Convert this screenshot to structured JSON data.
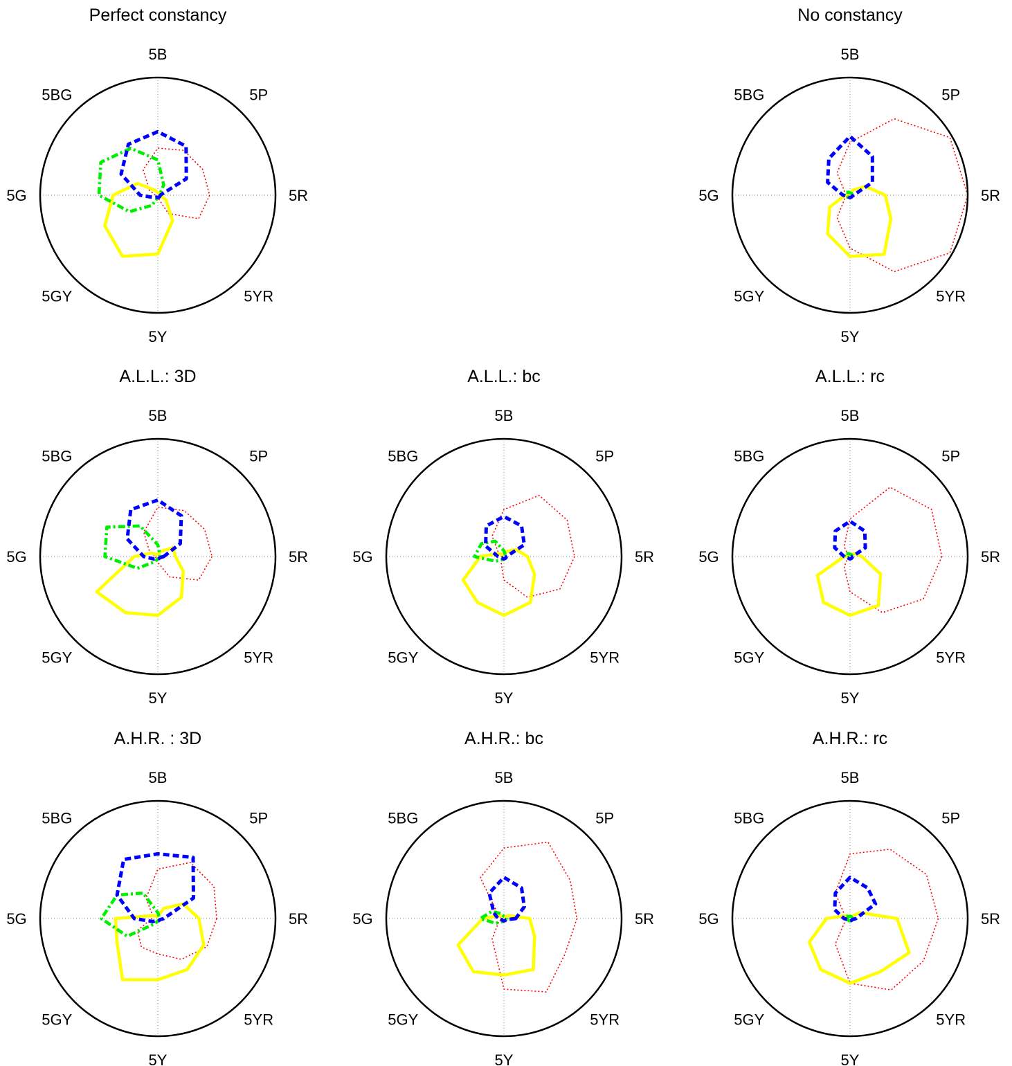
{
  "figure": {
    "directions": [
      "5R",
      "5YR",
      "5Y",
      "5GY",
      "5G",
      "5BG",
      "5B",
      "5P"
    ],
    "colors": {
      "outline": "#000000",
      "grid": "#888888",
      "red": "#ff0000",
      "yellow": "#ffff00",
      "green": "#00ee00",
      "blue": "#0000ff"
    }
  },
  "chart_data": [
    {
      "type": "polar",
      "title": "Perfect constancy",
      "rmax": 1,
      "grid": true,
      "angles_deg": [
        0,
        30,
        60,
        90,
        120,
        150,
        180,
        210,
        240,
        270,
        300,
        330
      ],
      "series": [
        {
          "color": "red",
          "style": "dotted",
          "values": [
            0.44,
            0.4,
            0.18,
            0.02,
            0.02,
            0.02,
            0.02,
            0.08,
            0.25,
            0.4,
            0.44,
            0.44
          ]
        },
        {
          "color": "yellow",
          "style": "solid",
          "values": [
            0.02,
            0.08,
            0.25,
            0.5,
            0.6,
            0.52,
            0.38,
            0.2,
            0.05,
            0.02,
            0.02,
            0.02
          ]
        },
        {
          "color": "green",
          "style": "dashdot",
          "values": [
            0.02,
            0.02,
            0.02,
            0.02,
            0.1,
            0.28,
            0.5,
            0.56,
            0.46,
            0.3,
            0.1,
            0.02
          ]
        },
        {
          "color": "blue",
          "style": "dashed",
          "values": [
            0.02,
            0.02,
            0.02,
            0.02,
            0.02,
            0.04,
            0.15,
            0.36,
            0.5,
            0.54,
            0.48,
            0.28
          ]
        }
      ]
    },
    {
      "type": "polar",
      "title": "No constancy",
      "rmax": 1,
      "grid": true,
      "angles_deg": [
        0,
        30,
        60,
        90,
        120,
        150,
        180,
        210,
        240,
        270,
        300,
        330
      ],
      "series": [
        {
          "color": "red",
          "style": "dotted",
          "values": [
            1.0,
            0.98,
            0.75,
            0.45,
            0.22,
            0.05,
            0.02,
            0.05,
            0.22,
            0.45,
            0.75,
            0.98
          ]
        },
        {
          "color": "yellow",
          "style": "solid",
          "values": [
            0.3,
            0.4,
            0.58,
            0.52,
            0.38,
            0.2,
            0.04,
            0.02,
            0.02,
            0.02,
            0.05,
            0.15
          ]
        },
        {
          "color": "green",
          "style": "dashdot",
          "values": [
            0.02,
            0.02,
            0.02,
            0.02,
            0.02,
            0.03,
            0.05,
            0.05,
            0.03,
            0.02,
            0.02,
            0.02
          ]
        },
        {
          "color": "blue",
          "style": "dashed",
          "values": [
            0.03,
            0.02,
            0.02,
            0.02,
            0.02,
            0.02,
            0.06,
            0.22,
            0.36,
            0.5,
            0.38,
            0.22
          ]
        }
      ]
    },
    {
      "type": "polar",
      "title": "A.L.L.: 3D",
      "rmax": 1,
      "grid": true,
      "angles_deg": [
        0,
        30,
        60,
        90,
        120,
        150,
        180,
        210,
        240,
        270,
        300,
        330
      ],
      "series": [
        {
          "color": "red",
          "style": "dotted",
          "values": [
            0.46,
            0.4,
            0.2,
            0.05,
            0.02,
            0.02,
            0.02,
            0.08,
            0.24,
            0.42,
            0.45,
            0.46
          ]
        },
        {
          "color": "yellow",
          "style": "solid",
          "values": [
            0.15,
            0.25,
            0.4,
            0.5,
            0.55,
            0.6,
            0.2,
            0.06,
            0.02,
            0.02,
            0.05,
            0.15
          ]
        },
        {
          "color": "green",
          "style": "dashdot",
          "values": [
            0.02,
            0.02,
            0.02,
            0.02,
            0.05,
            0.2,
            0.45,
            0.5,
            0.3,
            0.1,
            0.03,
            0.02
          ]
        },
        {
          "color": "blue",
          "style": "dashed",
          "values": [
            0.05,
            0.02,
            0.02,
            0.02,
            0.02,
            0.04,
            0.12,
            0.3,
            0.46,
            0.48,
            0.4,
            0.22
          ]
        }
      ]
    },
    {
      "type": "polar",
      "title": "A.L.L.: bc",
      "rmax": 1,
      "grid": true,
      "angles_deg": [
        0,
        30,
        60,
        90,
        120,
        150,
        180,
        210,
        240,
        270,
        300,
        330
      ],
      "series": [
        {
          "color": "red",
          "style": "dotted",
          "values": [
            0.6,
            0.55,
            0.4,
            0.2,
            0.05,
            0.02,
            0.02,
            0.05,
            0.2,
            0.4,
            0.6,
            0.62
          ]
        },
        {
          "color": "yellow",
          "style": "solid",
          "values": [
            0.2,
            0.3,
            0.45,
            0.5,
            0.45,
            0.4,
            0.2,
            0.05,
            0.02,
            0.02,
            0.05,
            0.12
          ]
        },
        {
          "color": "green",
          "style": "dashdot",
          "values": [
            0.02,
            0.02,
            0.02,
            0.02,
            0.03,
            0.08,
            0.25,
            0.22,
            0.15,
            0.05,
            0.02,
            0.02
          ]
        },
        {
          "color": "blue",
          "style": "dashed",
          "values": [
            0.02,
            0.02,
            0.02,
            0.02,
            0.02,
            0.02,
            0.05,
            0.18,
            0.3,
            0.34,
            0.3,
            0.2
          ]
        }
      ]
    },
    {
      "type": "polar",
      "title": "A.L.L.: rc",
      "rmax": 1,
      "grid": true,
      "angles_deg": [
        0,
        30,
        60,
        90,
        120,
        150,
        180,
        210,
        240,
        270,
        300,
        330
      ],
      "series": [
        {
          "color": "red",
          "style": "dotted",
          "values": [
            0.78,
            0.72,
            0.55,
            0.3,
            0.1,
            0.02,
            0.02,
            0.02,
            0.1,
            0.32,
            0.68,
            0.8
          ]
        },
        {
          "color": "yellow",
          "style": "solid",
          "values": [
            0.1,
            0.3,
            0.48,
            0.5,
            0.45,
            0.32,
            0.05,
            0.02,
            0.02,
            0.02,
            0.02,
            0.05
          ]
        },
        {
          "color": "green",
          "style": "dashdot",
          "values": [
            0.02,
            0.02,
            0.02,
            0.02,
            0.02,
            0.02,
            0.05,
            0.05,
            0.03,
            0.02,
            0.02,
            0.02
          ]
        },
        {
          "color": "blue",
          "style": "dashed",
          "values": [
            0.02,
            0.02,
            0.02,
            0.02,
            0.02,
            0.02,
            0.05,
            0.15,
            0.25,
            0.3,
            0.25,
            0.15
          ]
        }
      ]
    },
    {
      "type": "polar",
      "title": "A.H.R. : 3D",
      "rmax": 1,
      "grid": true,
      "angles_deg": [
        0,
        30,
        60,
        90,
        120,
        150,
        180,
        210,
        240,
        270,
        300,
        330
      ],
      "series": [
        {
          "color": "red",
          "style": "dotted",
          "values": [
            0.5,
            0.48,
            0.4,
            0.3,
            0.28,
            0.2,
            0.05,
            0.05,
            0.2,
            0.42,
            0.55,
            0.55
          ]
        },
        {
          "color": "yellow",
          "style": "solid",
          "values": [
            0.35,
            0.45,
            0.5,
            0.52,
            0.6,
            0.4,
            0.36,
            0.05,
            0.02,
            0.02,
            0.1,
            0.25
          ]
        },
        {
          "color": "green",
          "style": "dashdot",
          "values": [
            0.02,
            0.02,
            0.02,
            0.02,
            0.05,
            0.3,
            0.48,
            0.4,
            0.25,
            0.05,
            0.02,
            0.02
          ]
        },
        {
          "color": "blue",
          "style": "dashed",
          "values": [
            0.05,
            0.02,
            0.02,
            0.02,
            0.02,
            0.05,
            0.2,
            0.4,
            0.58,
            0.55,
            0.6,
            0.35
          ]
        }
      ]
    },
    {
      "type": "polar",
      "title": "A.H.R.: bc",
      "rmax": 1,
      "grid": true,
      "angles_deg": [
        0,
        30,
        60,
        90,
        120,
        150,
        180,
        210,
        240,
        270,
        300,
        330
      ],
      "series": [
        {
          "color": "red",
          "style": "dotted",
          "values": [
            0.62,
            0.6,
            0.72,
            0.6,
            0.2,
            0.05,
            0.02,
            0.05,
            0.4,
            0.6,
            0.75,
            0.65
          ]
        },
        {
          "color": "yellow",
          "style": "solid",
          "values": [
            0.22,
            0.3,
            0.5,
            0.48,
            0.52,
            0.45,
            0.18,
            0.05,
            0.02,
            0.02,
            0.02,
            0.05
          ]
        },
        {
          "color": "green",
          "style": "dashdot",
          "values": [
            0.02,
            0.02,
            0.02,
            0.02,
            0.03,
            0.08,
            0.2,
            0.12,
            0.05,
            0.02,
            0.02,
            0.02
          ]
        },
        {
          "color": "blue",
          "style": "dashed",
          "values": [
            0.1,
            0.02,
            0.02,
            0.02,
            0.02,
            0.02,
            0.05,
            0.1,
            0.25,
            0.35,
            0.3,
            0.2
          ]
        }
      ]
    },
    {
      "type": "polar",
      "title": "A.H.R.: rc",
      "rmax": 1,
      "grid": true,
      "angles_deg": [
        0,
        30,
        60,
        90,
        120,
        150,
        180,
        210,
        240,
        270,
        300,
        330
      ],
      "series": [
        {
          "color": "red",
          "style": "dotted",
          "values": [
            0.75,
            0.72,
            0.7,
            0.55,
            0.25,
            0.05,
            0.02,
            0.05,
            0.25,
            0.55,
            0.68,
            0.75
          ]
        },
        {
          "color": "yellow",
          "style": "solid",
          "values": [
            0.4,
            0.58,
            0.52,
            0.55,
            0.5,
            0.4,
            0.2,
            0.05,
            0.02,
            0.02,
            0.02,
            0.1
          ]
        },
        {
          "color": "green",
          "style": "dashdot",
          "values": [
            0.02,
            0.02,
            0.02,
            0.02,
            0.02,
            0.02,
            0.05,
            0.05,
            0.02,
            0.02,
            0.02,
            0.02
          ]
        },
        {
          "color": "blue",
          "style": "dashed",
          "values": [
            0.05,
            0.02,
            0.02,
            0.02,
            0.02,
            0.02,
            0.05,
            0.15,
            0.25,
            0.35,
            0.3,
            0.25
          ]
        }
      ]
    }
  ]
}
